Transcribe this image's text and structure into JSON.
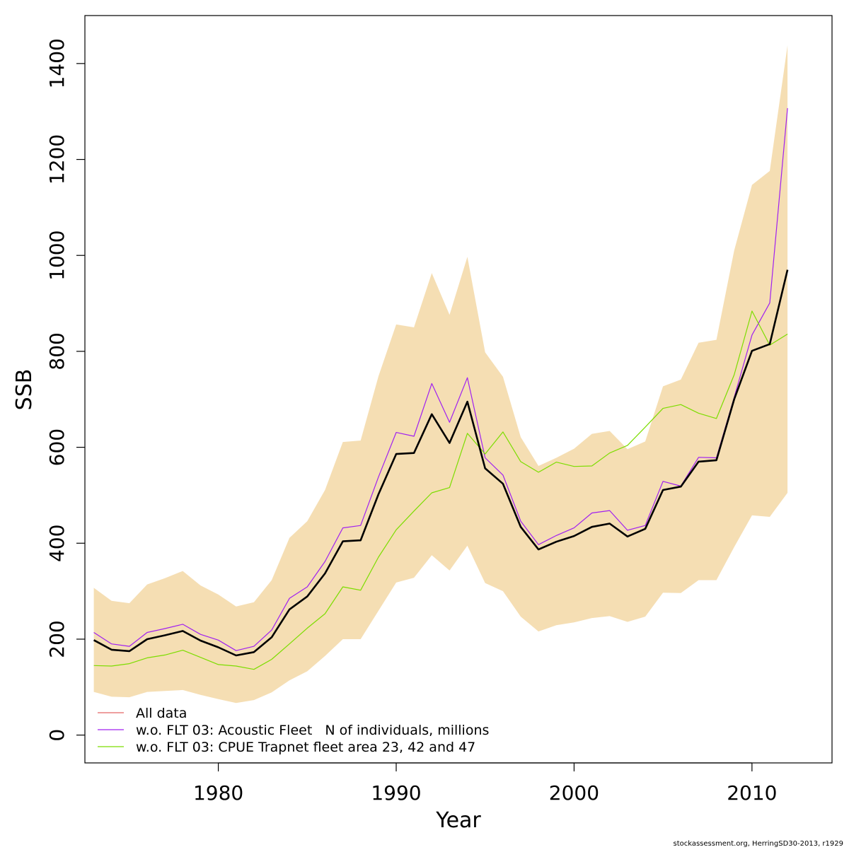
{
  "chart_data": {
    "type": "line",
    "xlabel": "Year",
    "ylabel": "SSB",
    "xlim": [
      1972.5,
      2014.5
    ],
    "ylim": [
      -58,
      1500
    ],
    "x_ticks": [
      1980,
      1990,
      2000,
      2010
    ],
    "y_ticks": [
      0,
      200,
      400,
      600,
      800,
      1000,
      1200,
      1400
    ],
    "x_tick_labels": [
      "1980",
      "1990",
      "2000",
      "2010"
    ],
    "y_tick_labels": [
      "0",
      "200",
      "400",
      "600",
      "800",
      "1000",
      "1200",
      "1400"
    ],
    "grid": false,
    "legend_position": "bottom-left",
    "years": [
      1973,
      1974,
      1975,
      1976,
      1977,
      1978,
      1979,
      1980,
      1981,
      1982,
      1983,
      1984,
      1985,
      1986,
      1987,
      1988,
      1989,
      1990,
      1991,
      1992,
      1993,
      1994,
      1995,
      1996,
      1997,
      1998,
      1999,
      2000,
      2001,
      2002,
      2003,
      2004,
      2005,
      2006,
      2007,
      2008,
      2009,
      2010,
      2011,
      2012
    ],
    "confidence_band": {
      "color": "#f5deb3",
      "lower": [
        90,
        80,
        79,
        90,
        92,
        94,
        84,
        75,
        67,
        73,
        89,
        114,
        133,
        165,
        200,
        200,
        259,
        318,
        328,
        375,
        343,
        395,
        317,
        300,
        247,
        216,
        229,
        235,
        244,
        248,
        236,
        247,
        297,
        296,
        323,
        323,
        392,
        458,
        455,
        505
      ],
      "upper": [
        307,
        280,
        275,
        314,
        327,
        342,
        312,
        293,
        268,
        277,
        323,
        411,
        446,
        511,
        611,
        614,
        748,
        856,
        850,
        963,
        876,
        997,
        798,
        747,
        621,
        561,
        578,
        597,
        628,
        634,
        596,
        612,
        727,
        741,
        818,
        824,
        1010,
        1147,
        1176,
        1438
      ]
    },
    "series": [
      {
        "name": "All data",
        "color": "#000000",
        "stroke_width": 2.6,
        "values": [
          198,
          178,
          175,
          200,
          208,
          217,
          197,
          183,
          166,
          173,
          204,
          262,
          289,
          337,
          404,
          406,
          502,
          586,
          588,
          669,
          609,
          695,
          556,
          524,
          434,
          387,
          403,
          415,
          434,
          441,
          414,
          430,
          511,
          518,
          570,
          573,
          700,
          801,
          815,
          970
        ]
      },
      {
        "name": "w.o. FLT 03: Acoustic Fleet   N of individuals, millions",
        "color": "#a020f0",
        "stroke_width": 1.2,
        "values": [
          214,
          190,
          185,
          214,
          222,
          231,
          210,
          198,
          176,
          185,
          219,
          285,
          309,
          362,
          432,
          437,
          538,
          631,
          623,
          733,
          652,
          745,
          578,
          542,
          446,
          397,
          416,
          432,
          463,
          468,
          427,
          437,
          529,
          519,
          579,
          578,
          704,
          834,
          901,
          1307
        ]
      },
      {
        "name": "w.o. FLT 03: CPUE Trapnet fleet area 23, 42 and 47",
        "color": "#7cdd00",
        "stroke_width": 1.2,
        "values": [
          145,
          144,
          149,
          161,
          167,
          177,
          162,
          147,
          144,
          137,
          158,
          190,
          223,
          253,
          309,
          302,
          371,
          428,
          467,
          505,
          516,
          629,
          586,
          632,
          570,
          548,
          569,
          560,
          561,
          588,
          604,
          642,
          681,
          689,
          671,
          660,
          751,
          884,
          813,
          836
        ]
      }
    ],
    "legend": [
      {
        "label": "All data",
        "color": "#e36666"
      },
      {
        "label": "w.o. FLT 03: Acoustic Fleet   N of individuals, millions",
        "color": "#a020f0"
      },
      {
        "label": "w.o. FLT 03: CPUE Trapnet fleet area 23, 42 and 47",
        "color": "#7cdd00"
      }
    ],
    "footer": "stockassessment.org, HerringSD30-2013, r1929"
  }
}
